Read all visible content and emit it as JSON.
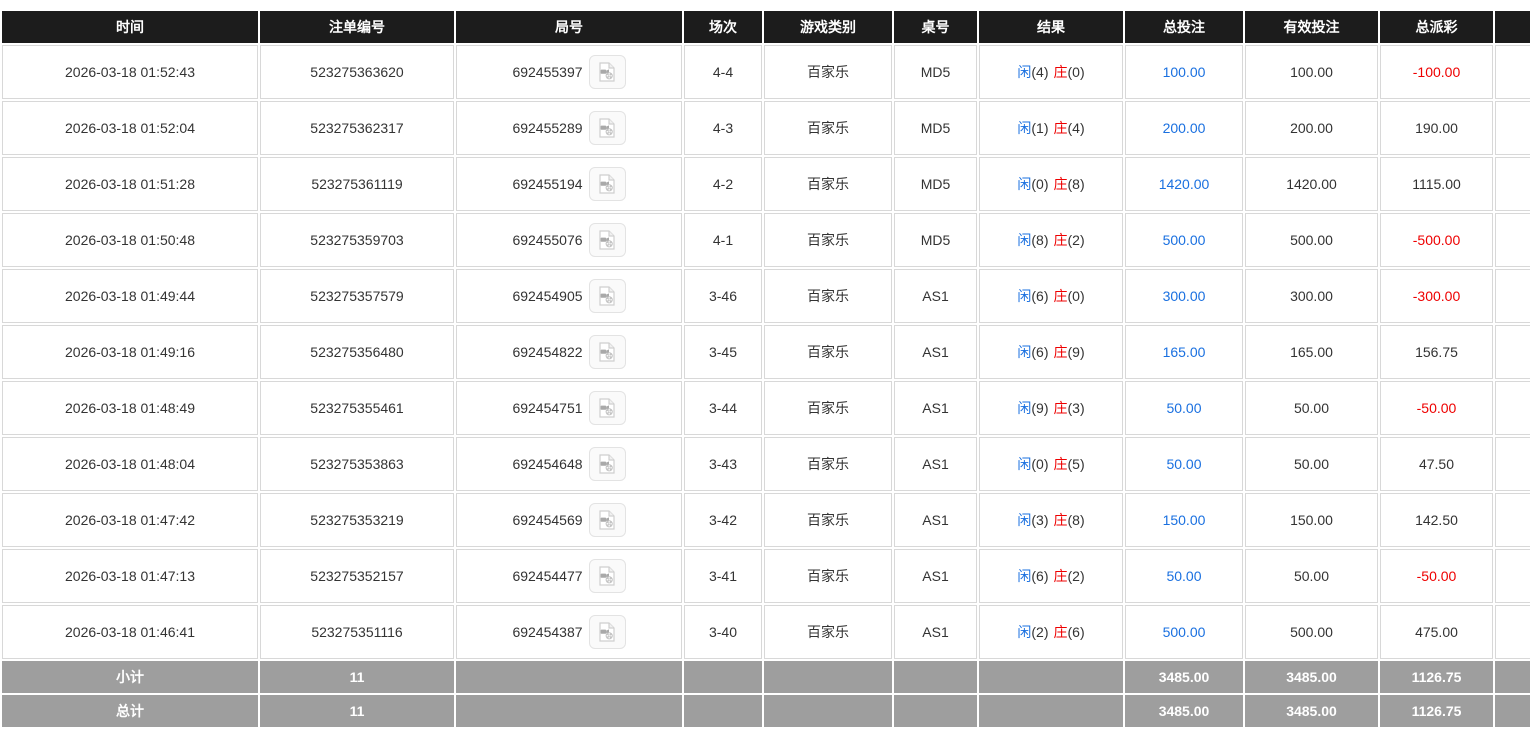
{
  "colors": {
    "accent_blue": "#1a70e0",
    "negative_red": "#ee0000",
    "header_bg": "#1c1c1c",
    "footer_bg": "#9e9e9e"
  },
  "table": {
    "columns": [
      "时间",
      "注单编号",
      "局号",
      "场次",
      "游戏类别",
      "桌号",
      "结果",
      "总投注",
      "有效投注",
      "总派彩",
      ""
    ],
    "result_labels": {
      "player": "闲",
      "banker": "庄"
    },
    "rows": [
      {
        "time": "2026-03-18 01:52:43",
        "bet_id": "523275363620",
        "round_no": "692455397",
        "session": "4-4",
        "game_type": "百家乐",
        "table_no": "MD5",
        "player_count": "(4)",
        "banker_count": "(0)",
        "total_bet": "100.00",
        "valid_bet": "100.00",
        "payout": "-100.00"
      },
      {
        "time": "2026-03-18 01:52:04",
        "bet_id": "523275362317",
        "round_no": "692455289",
        "session": "4-3",
        "game_type": "百家乐",
        "table_no": "MD5",
        "player_count": "(1)",
        "banker_count": "(4)",
        "total_bet": "200.00",
        "valid_bet": "200.00",
        "payout": "190.00"
      },
      {
        "time": "2026-03-18 01:51:28",
        "bet_id": "523275361119",
        "round_no": "692455194",
        "session": "4-2",
        "game_type": "百家乐",
        "table_no": "MD5",
        "player_count": "(0)",
        "banker_count": "(8)",
        "total_bet": "1420.00",
        "valid_bet": "1420.00",
        "payout": "1115.00"
      },
      {
        "time": "2026-03-18 01:50:48",
        "bet_id": "523275359703",
        "round_no": "692455076",
        "session": "4-1",
        "game_type": "百家乐",
        "table_no": "MD5",
        "player_count": "(8)",
        "banker_count": "(2)",
        "total_bet": "500.00",
        "valid_bet": "500.00",
        "payout": "-500.00"
      },
      {
        "time": "2026-03-18 01:49:44",
        "bet_id": "523275357579",
        "round_no": "692454905",
        "session": "3-46",
        "game_type": "百家乐",
        "table_no": "AS1",
        "player_count": "(6)",
        "banker_count": "(0)",
        "total_bet": "300.00",
        "valid_bet": "300.00",
        "payout": "-300.00"
      },
      {
        "time": "2026-03-18 01:49:16",
        "bet_id": "523275356480",
        "round_no": "692454822",
        "session": "3-45",
        "game_type": "百家乐",
        "table_no": "AS1",
        "player_count": "(6)",
        "banker_count": "(9)",
        "total_bet": "165.00",
        "valid_bet": "165.00",
        "payout": "156.75"
      },
      {
        "time": "2026-03-18 01:48:49",
        "bet_id": "523275355461",
        "round_no": "692454751",
        "session": "3-44",
        "game_type": "百家乐",
        "table_no": "AS1",
        "player_count": "(9)",
        "banker_count": "(3)",
        "total_bet": "50.00",
        "valid_bet": "50.00",
        "payout": "-50.00"
      },
      {
        "time": "2026-03-18 01:48:04",
        "bet_id": "523275353863",
        "round_no": "692454648",
        "session": "3-43",
        "game_type": "百家乐",
        "table_no": "AS1",
        "player_count": "(0)",
        "banker_count": "(5)",
        "total_bet": "50.00",
        "valid_bet": "50.00",
        "payout": "47.50"
      },
      {
        "time": "2026-03-18 01:47:42",
        "bet_id": "523275353219",
        "round_no": "692454569",
        "session": "3-42",
        "game_type": "百家乐",
        "table_no": "AS1",
        "player_count": "(3)",
        "banker_count": "(8)",
        "total_bet": "150.00",
        "valid_bet": "150.00",
        "payout": "142.50"
      },
      {
        "time": "2026-03-18 01:47:13",
        "bet_id": "523275352157",
        "round_no": "692454477",
        "session": "3-41",
        "game_type": "百家乐",
        "table_no": "AS1",
        "player_count": "(6)",
        "banker_count": "(2)",
        "total_bet": "50.00",
        "valid_bet": "50.00",
        "payout": "-50.00"
      },
      {
        "time": "2026-03-18 01:46:41",
        "bet_id": "523275351116",
        "round_no": "692454387",
        "session": "3-40",
        "game_type": "百家乐",
        "table_no": "AS1",
        "player_count": "(2)",
        "banker_count": "(6)",
        "total_bet": "500.00",
        "valid_bet": "500.00",
        "payout": "475.00"
      }
    ],
    "subtotal": {
      "label": "小计",
      "count": "11",
      "total_bet": "3485.00",
      "valid_bet": "3485.00",
      "payout": "1126.75"
    },
    "total": {
      "label": "总计",
      "count": "11",
      "total_bet": "3485.00",
      "valid_bet": "3485.00",
      "payout": "1126.75"
    }
  }
}
